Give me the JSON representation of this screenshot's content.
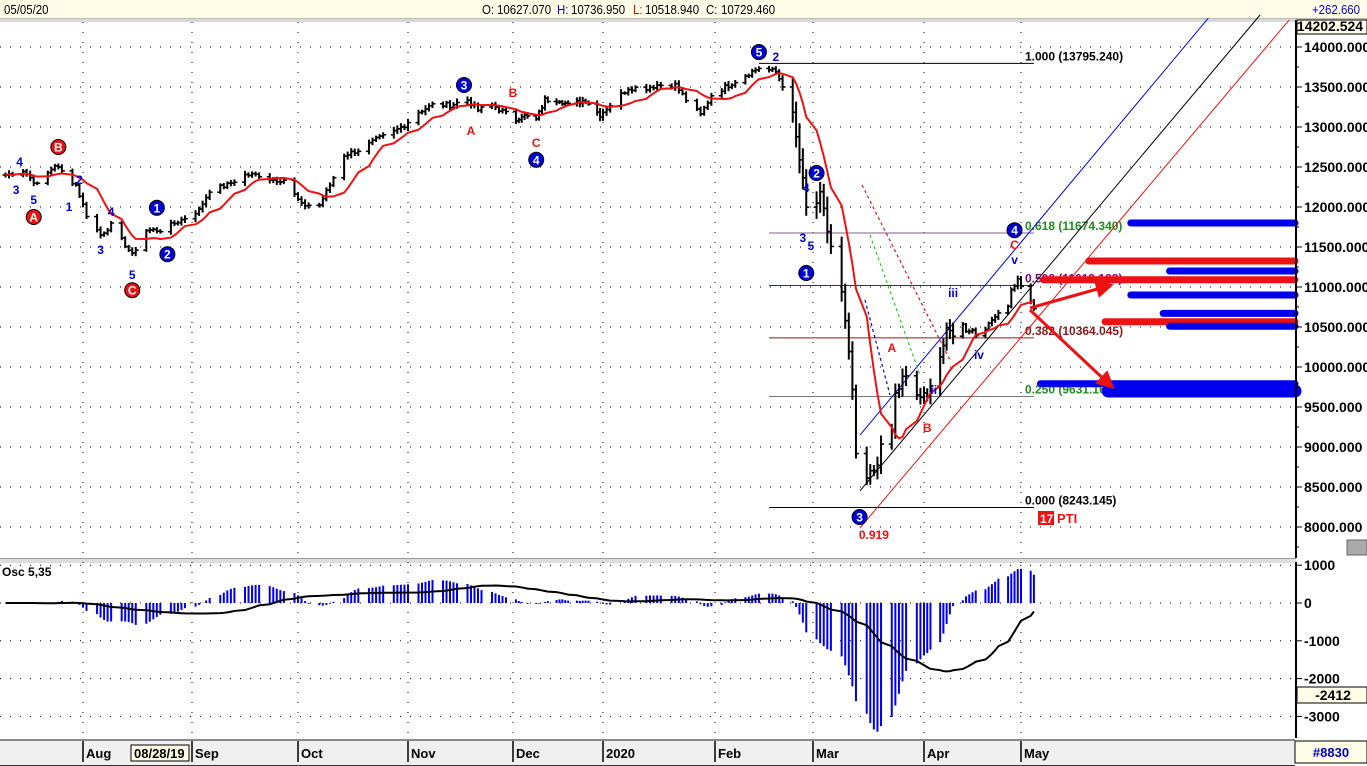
{
  "header": {
    "date": "05/05/20",
    "open_label": "O:",
    "open": "10627.070",
    "high_label": "H:",
    "high": "10736.950",
    "low_label": "L:",
    "low": "10518.940",
    "close_label": "C:",
    "close": "10729.460",
    "change": "+262.660"
  },
  "price_axis": {
    "top_value": "14202.524",
    "tick_labels": [
      "14000.000",
      "13500.000",
      "13000.000",
      "12500.000",
      "12000.000",
      "11500.000",
      "11000.000",
      "10500.000",
      "10000.000",
      "9500.000",
      "9000.000",
      "8500.000",
      "8000.000"
    ]
  },
  "osc_panel": {
    "title": "Osc 5,35",
    "tick_labels": [
      "1000",
      "0",
      "-1000",
      "-2000",
      "-3000"
    ],
    "current_value": "-2412"
  },
  "date_axis": {
    "months": [
      "Aug",
      "Sep",
      "Oct",
      "Nov",
      "Dec",
      "2020",
      "Feb",
      "Mar",
      "Apr",
      "May"
    ],
    "cursor_date": "08/28/19",
    "bar_count": "#8830"
  },
  "colors": {
    "bars": "#000000",
    "moving_average": "#ee1111",
    "osc_histogram": "#0000ee",
    "osc_signal": "#000000",
    "wave_blue": "#0000dd",
    "wave_red": "#ee1111",
    "fib_text_green": "#228b22",
    "fib_text_purple": "#800080",
    "fib_text_darkred": "#8b1a1a"
  },
  "chart_data": {
    "type": "bar",
    "subtype": "ohlc",
    "price_ylim": [
      7700,
      14262
    ],
    "osc_ylim": [
      -3500,
      1000
    ],
    "grid": true,
    "price_path": [
      [
        "2019-07-10",
        12400
      ],
      [
        "2019-07-15",
        12460
      ],
      [
        "2019-07-19",
        12275
      ],
      [
        "2019-07-24",
        12525
      ],
      [
        "2019-07-30",
        12275
      ],
      [
        "2019-08-02",
        11900
      ],
      [
        "2019-08-06",
        11650
      ],
      [
        "2019-08-09",
        11775
      ],
      [
        "2019-08-15",
        11400
      ],
      [
        "2019-08-19",
        11710
      ],
      [
        "2019-08-23",
        11710
      ],
      [
        "2019-08-29",
        11840
      ],
      [
        "2019-09-03",
        11960
      ],
      [
        "2019-09-06",
        12210
      ],
      [
        "2019-09-11",
        12275
      ],
      [
        "2019-09-16",
        12400
      ],
      [
        "2019-09-20",
        12400
      ],
      [
        "2019-09-24",
        12340
      ],
      [
        "2019-09-27",
        12340
      ],
      [
        "2019-10-02",
        12025
      ],
      [
        "2019-10-07",
        12025
      ],
      [
        "2019-10-10",
        12275
      ],
      [
        "2019-10-14",
        12650
      ],
      [
        "2019-10-18",
        12710
      ],
      [
        "2019-10-23",
        12840
      ],
      [
        "2019-10-28",
        12940
      ],
      [
        "2019-10-31",
        13025
      ],
      [
        "2019-11-04",
        13190
      ],
      [
        "2019-11-08",
        13275
      ],
      [
        "2019-11-13",
        13275
      ],
      [
        "2019-11-18",
        13340
      ],
      [
        "2019-11-21",
        13210
      ],
      [
        "2019-11-25",
        13275
      ],
      [
        "2019-12-02",
        13090
      ],
      [
        "2019-12-04",
        13150
      ],
      [
        "2019-12-09",
        13090
      ],
      [
        "2019-12-12",
        13340
      ],
      [
        "2019-12-17",
        13340
      ],
      [
        "2019-12-20",
        13275
      ],
      [
        "2019-12-26",
        13340
      ],
      [
        "2019-12-31",
        13150
      ],
      [
        "2020-01-08",
        13490
      ],
      [
        "2020-01-13",
        13490
      ],
      [
        "2020-01-16",
        13525
      ],
      [
        "2020-01-21",
        13525
      ],
      [
        "2020-01-24",
        13340
      ],
      [
        "2020-01-28",
        13150
      ],
      [
        "2020-01-31",
        13400
      ],
      [
        "2020-02-05",
        13525
      ],
      [
        "2020-02-10",
        13650
      ],
      [
        "2020-02-14",
        13740
      ],
      [
        "2020-02-19",
        13690
      ],
      [
        "2020-02-21",
        13525
      ],
      [
        "2020-02-24",
        13090
      ],
      [
        "2020-02-26",
        12590
      ],
      [
        "2020-02-28",
        11960
      ],
      [
        "2020-03-03",
        12090
      ],
      [
        "2020-03-05",
        11710
      ],
      [
        "2020-03-09",
        10900
      ],
      [
        "2020-03-10",
        10525
      ],
      [
        "2020-03-12",
        9710
      ],
      [
        "2020-03-13",
        8840
      ],
      [
        "2020-03-16",
        8590
      ],
      [
        "2020-03-18",
        8715
      ],
      [
        "2020-03-20",
        8960
      ],
      [
        "2020-03-23",
        9210
      ],
      [
        "2020-03-24",
        9650
      ],
      [
        "2020-03-26",
        9840
      ],
      [
        "2020-03-27",
        9840
      ],
      [
        "2020-03-30",
        9650
      ],
      [
        "2020-04-02",
        9590
      ],
      [
        "2020-04-03",
        9840
      ],
      [
        "2020-04-06",
        10150
      ],
      [
        "2020-04-08",
        10400
      ],
      [
        "2020-04-13",
        10525
      ],
      [
        "2020-04-14",
        10460
      ],
      [
        "2020-04-16",
        10460
      ],
      [
        "2020-04-17",
        10400
      ],
      [
        "2020-04-21",
        10525
      ],
      [
        "2020-04-23",
        10650
      ],
      [
        "2020-04-27",
        10775
      ],
      [
        "2020-04-28",
        10960
      ],
      [
        "2020-04-30",
        11090
      ],
      [
        "2020-05-05",
        10729.46
      ]
    ],
    "fib_levels": [
      {
        "label": "1.000 (13795.240)",
        "value": 13795.24,
        "start": "2020-02-14",
        "color": "#000000",
        "line": "#000000"
      },
      {
        "label": "0.618 (11674.340)",
        "value": 11674.34,
        "start": "2020-02-17",
        "color": "#228b22",
        "line": "#806080"
      },
      {
        "label": "0.500 (11019.193)",
        "value": 11019.193,
        "start": "2020-02-17",
        "color": "#800080",
        "line": "#800080"
      },
      {
        "label": "0.382 (10364.045)",
        "value": 10364.045,
        "start": "2020-02-17",
        "color": "#8b1a1a",
        "line": "#8b1a1a"
      },
      {
        "label": "0.250 (9631.169)",
        "value": 9631.169,
        "start": "2020-02-17",
        "color": "#228b22",
        "line": "#777777"
      },
      {
        "label": "0.000 (8243.145)",
        "value": 8243.145,
        "start": "2020-02-17",
        "color": "#000000",
        "line": "#000000"
      }
    ],
    "channel_lines": [
      {
        "color": "#0000ee",
        "p1": [
          "2020-04-29",
          11462
        ],
        "p2": [
          "2020-06-28",
          14362
        ]
      },
      {
        "color": "#000000",
        "p1": [
          "2020-03-19",
          8712
        ],
        "p2": [
          "2020-07-14",
          14400
        ]
      },
      {
        "color": "#ee1111",
        "p1": [
          "2020-03-16",
          8087
        ],
        "p2": [
          "2020-07-23",
          14337
        ]
      }
    ],
    "target_zones": [
      {
        "price": 11800,
        "start": "2020-06-04",
        "color": "#0000ee"
      },
      {
        "price": 11325,
        "start": "2020-05-22",
        "color": "#ee1111"
      },
      {
        "price": 11200,
        "start": "2020-06-16",
        "color": "#0000ee"
      },
      {
        "price": 11090,
        "start": "2020-05-08",
        "color": "#ee1111"
      },
      {
        "price": 10900,
        "start": "2020-06-04",
        "color": "#0000ee"
      },
      {
        "price": 10670,
        "start": "2020-06-14",
        "color": "#0000ee"
      },
      {
        "price": 10565,
        "start": "2020-05-27",
        "color": "#ee1111"
      },
      {
        "price": 10510,
        "start": "2020-06-16",
        "color": "#0000ee"
      },
      {
        "price": 9790,
        "start": "2020-05-07",
        "color": "#0000ee"
      },
      {
        "price": 9700,
        "start": "2020-05-28",
        "color": "#0000ee",
        "thick": true
      }
    ],
    "wave_circles": [
      {
        "text": "5",
        "date": "2020-02-14",
        "price": 13937,
        "color": "#0000dd"
      },
      {
        "text": "3",
        "date": "2019-11-17",
        "price": 13525,
        "color": "#0000dd"
      },
      {
        "text": "4",
        "date": "2019-12-09",
        "price": 12590,
        "color": "#0000dd"
      },
      {
        "text": "1",
        "date": "2019-08-22",
        "price": 11990,
        "color": "#0000dd"
      },
      {
        "text": "2",
        "date": "2019-08-25",
        "price": 11410,
        "color": "#0000dd"
      },
      {
        "text": "2",
        "date": "2020-03-02",
        "price": 12425,
        "color": "#0000dd"
      },
      {
        "text": "1",
        "date": "2020-02-28",
        "price": 11175,
        "color": "#0000dd"
      },
      {
        "text": "3",
        "date": "2020-03-14",
        "price": 8125,
        "color": "#0000dd"
      },
      {
        "text": "4",
        "date": "2020-04-29",
        "price": 11710,
        "color": "#0000dd"
      },
      {
        "text": "A",
        "date": "2019-07-18",
        "price": 11875,
        "color": "#ee1111"
      },
      {
        "text": "B",
        "date": "2019-07-25",
        "price": 12750,
        "color": "#ee1111"
      },
      {
        "text": "C",
        "date": "2019-08-15",
        "price": 10960,
        "color": "#ee1111"
      }
    ],
    "wave_labels": [
      {
        "text": "2",
        "date": "2020-02-19",
        "price": 13875,
        "color": "#0000dd"
      },
      {
        "text": "B",
        "date": "2019-12-01",
        "price": 13425,
        "color": "#ee1111"
      },
      {
        "text": "A",
        "date": "2019-11-19",
        "price": 12950,
        "color": "#ee1111"
      },
      {
        "text": "C",
        "date": "2019-12-09",
        "price": 12800,
        "color": "#ee1111"
      },
      {
        "text": "4",
        "date": "2019-07-14",
        "price": 12560,
        "color": "#0000dd"
      },
      {
        "text": "3",
        "date": "2019-07-13",
        "price": 12210,
        "color": "#0000dd"
      },
      {
        "text": "5",
        "date": "2019-07-18",
        "price": 12090,
        "color": "#0000dd"
      },
      {
        "text": "2",
        "date": "2019-07-31",
        "price": 12340,
        "color": "#0000dd"
      },
      {
        "text": "1",
        "date": "2019-07-28",
        "price": 12000,
        "color": "#0000dd"
      },
      {
        "text": "3",
        "date": "2019-08-06",
        "price": 11460,
        "color": "#0000dd"
      },
      {
        "text": "4",
        "date": "2019-08-09",
        "price": 11940,
        "color": "#0000dd"
      },
      {
        "text": "5",
        "date": "2019-08-15",
        "price": 11150,
        "color": "#0000dd"
      },
      {
        "text": "4",
        "date": "2020-02-28",
        "price": 12240,
        "color": "#0000dd"
      },
      {
        "text": "3",
        "date": "2020-02-27",
        "price": 11610,
        "color": "#0000dd"
      },
      {
        "text": "5",
        "date": "2020-02-28",
        "price": 11510,
        "color": "#0000dd"
      },
      {
        "text": "0.919",
        "date": "2020-03-18",
        "price": 7900,
        "color": "#ee1111"
      },
      {
        "text": "A",
        "date": "2020-03-23",
        "price": 10240,
        "color": "#ee1111"
      },
      {
        "text": "B",
        "date": "2020-04-02",
        "price": 9240,
        "color": "#ee1111"
      },
      {
        "text": "ii",
        "date": "2020-04-04",
        "price": 9710,
        "color": "#0000dd"
      },
      {
        "text": "iii",
        "date": "2020-04-10",
        "price": 10925,
        "color": "#0000dd"
      },
      {
        "text": "iv",
        "date": "2020-04-18",
        "price": 10150,
        "color": "#0000dd"
      },
      {
        "text": "v",
        "date": "2020-04-29",
        "price": 11340,
        "color": "#0000dd"
      },
      {
        "text": "C",
        "date": "2020-04-29",
        "price": 11525,
        "color": "#ee1111"
      }
    ],
    "pti": {
      "value": "17",
      "label": "PTI"
    }
  }
}
